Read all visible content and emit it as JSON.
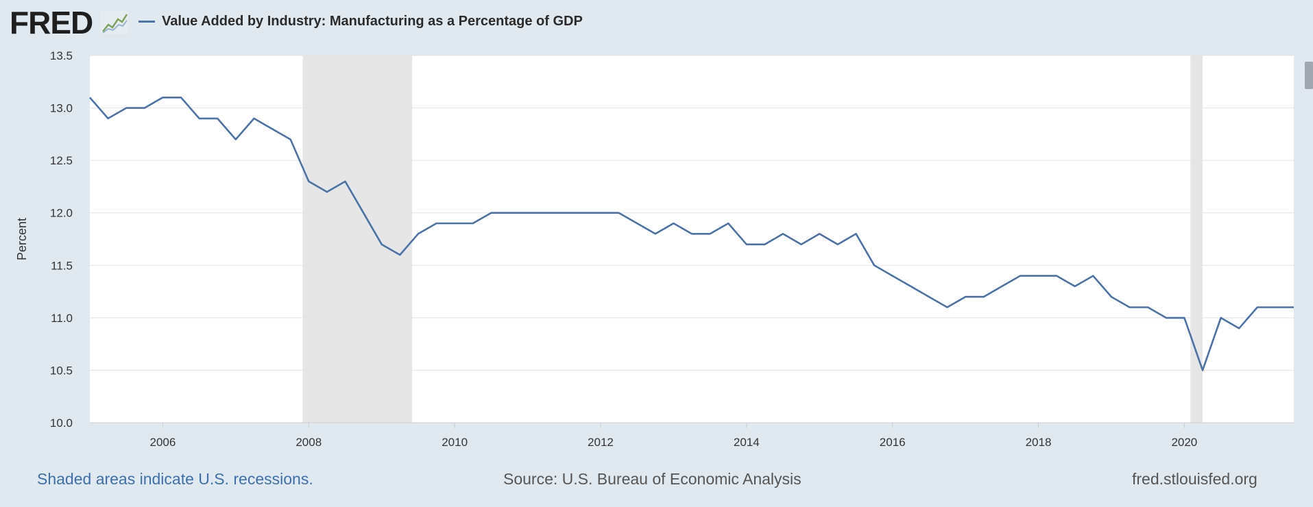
{
  "header": {
    "logo_text": "FRED",
    "logo_icon": "line-chart-icon",
    "series_title": "Value Added by Industry: Manufacturing as a Percentage of GDP"
  },
  "footer": {
    "recession_note": "Shaded areas indicate U.S. recessions.",
    "source": "Source: U.S. Bureau of Economic Analysis",
    "site": "fred.stlouisfed.org"
  },
  "colors": {
    "series": "#4a72a8",
    "recession_shade": "#e6e6e6",
    "plot_background": "#ffffff",
    "page_background": "#e1e9f0",
    "link": "#3d6fae"
  },
  "chart_data": {
    "type": "line",
    "title": "Value Added by Industry: Manufacturing as a Percentage of GDP",
    "xlabel": "",
    "ylabel": "Percent",
    "ylim": [
      10.0,
      13.5
    ],
    "xlim": [
      2005.0,
      2021.5
    ],
    "yticks": [
      "10.0",
      "10.5",
      "11.0",
      "11.5",
      "12.0",
      "12.5",
      "13.0",
      "13.5"
    ],
    "xticks": [
      "2006",
      "2008",
      "2010",
      "2012",
      "2014",
      "2016",
      "2018",
      "2020"
    ],
    "grid": "horizontal",
    "legend": "top-left",
    "recessions": [
      [
        2007.917,
        2009.417
      ],
      [
        2020.083,
        2020.25
      ]
    ],
    "series": [
      {
        "name": "Value Added by Industry: Manufacturing as a Percentage of GDP",
        "x": [
          2005.0,
          2005.25,
          2005.5,
          2005.75,
          2006.0,
          2006.25,
          2006.5,
          2006.75,
          2007.0,
          2007.25,
          2007.5,
          2007.75,
          2008.0,
          2008.25,
          2008.5,
          2008.75,
          2009.0,
          2009.25,
          2009.5,
          2009.75,
          2010.0,
          2010.25,
          2010.5,
          2010.75,
          2011.0,
          2011.25,
          2011.5,
          2011.75,
          2012.0,
          2012.25,
          2012.5,
          2012.75,
          2013.0,
          2013.25,
          2013.5,
          2013.75,
          2014.0,
          2014.25,
          2014.5,
          2014.75,
          2015.0,
          2015.25,
          2015.5,
          2015.75,
          2016.0,
          2016.25,
          2016.5,
          2016.75,
          2017.0,
          2017.25,
          2017.5,
          2017.75,
          2018.0,
          2018.25,
          2018.5,
          2018.75,
          2019.0,
          2019.25,
          2019.5,
          2019.75,
          2020.0,
          2020.25,
          2020.5,
          2020.75,
          2021.0,
          2021.25,
          2021.5
        ],
        "values": [
          13.1,
          12.9,
          13.0,
          13.0,
          13.1,
          13.1,
          12.9,
          12.9,
          12.7,
          12.9,
          12.8,
          12.7,
          12.3,
          12.2,
          12.3,
          12.0,
          11.7,
          11.6,
          11.8,
          11.9,
          11.9,
          11.9,
          12.0,
          12.0,
          12.0,
          12.0,
          12.0,
          12.0,
          12.0,
          12.0,
          11.9,
          11.8,
          11.9,
          11.8,
          11.8,
          11.9,
          11.7,
          11.7,
          11.8,
          11.7,
          11.8,
          11.7,
          11.8,
          11.5,
          11.4,
          11.3,
          11.2,
          11.1,
          11.2,
          11.2,
          11.3,
          11.4,
          11.4,
          11.4,
          11.3,
          11.4,
          11.2,
          11.1,
          11.1,
          11.0,
          11.0,
          10.5,
          11.0,
          10.9,
          11.1,
          11.1,
          11.1
        ]
      }
    ]
  }
}
